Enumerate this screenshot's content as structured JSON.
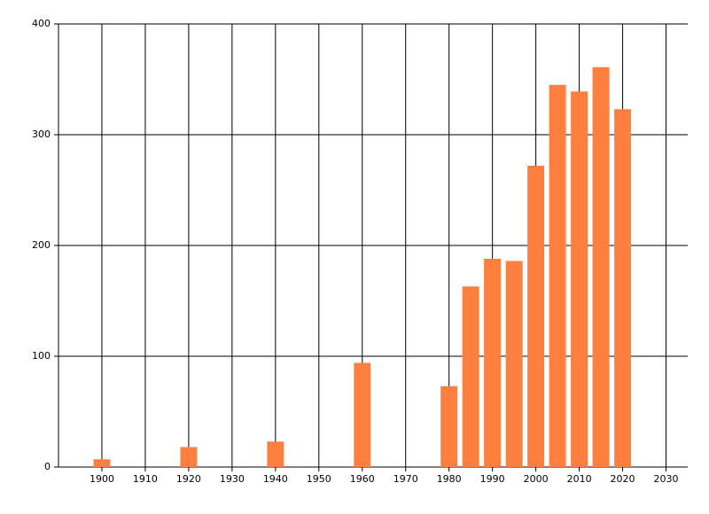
{
  "chart_data": {
    "type": "bar",
    "x": [
      1900,
      1920,
      1940,
      1960,
      1980,
      1985,
      1990,
      1995,
      2000,
      2005,
      2010,
      2015,
      2020
    ],
    "values": [
      7,
      18,
      23,
      94,
      73,
      163,
      188,
      186,
      272,
      345,
      339,
      361,
      323
    ],
    "color": "#ff7f3f",
    "xlim": [
      1890,
      2035
    ],
    "xticks": [
      1900,
      1910,
      1920,
      1930,
      1940,
      1950,
      1960,
      1970,
      1980,
      1990,
      2000,
      2010,
      2020,
      2030
    ],
    "ylim": [
      0,
      400
    ],
    "yticks": [
      0,
      100,
      200,
      300,
      400
    ],
    "grid": true
  }
}
